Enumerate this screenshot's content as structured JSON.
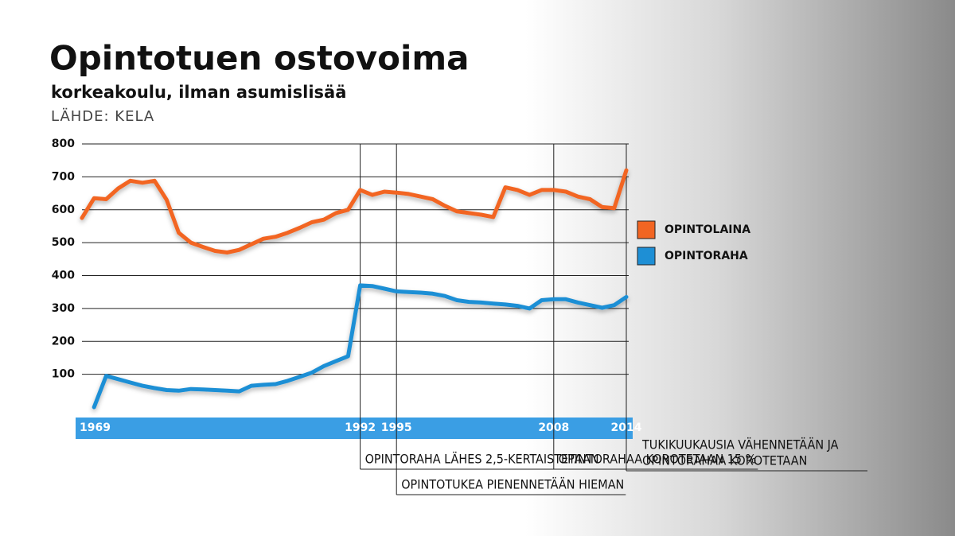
{
  "chart_data": {
    "type": "line",
    "title": "Opintotuen ostovoima",
    "subtitle": "korkeakoulu, ilman asumislisää",
    "source": "LÄHDE: KELA",
    "x": [
      1969,
      1970,
      1971,
      1972,
      1973,
      1974,
      1975,
      1976,
      1977,
      1978,
      1979,
      1980,
      1981,
      1982,
      1983,
      1984,
      1985,
      1986,
      1987,
      1988,
      1989,
      1990,
      1991,
      1992,
      1993,
      1994,
      1995,
      1996,
      1997,
      1998,
      1999,
      2000,
      2001,
      2002,
      2003,
      2004,
      2005,
      2006,
      2007,
      2008,
      2009,
      2010,
      2011,
      2012,
      2013,
      2014
    ],
    "series": [
      {
        "name": "OPINTOLAINA",
        "color": "#f26522",
        "values": [
          575,
          635,
          632,
          665,
          688,
          682,
          688,
          630,
          530,
          500,
          487,
          475,
          470,
          478,
          495,
          512,
          518,
          530,
          545,
          562,
          570,
          590,
          600,
          660,
          645,
          655,
          652,
          648,
          640,
          632,
          612,
          595,
          590,
          585,
          578,
          668,
          660,
          645,
          660,
          660,
          655,
          640,
          632,
          608,
          605,
          720
        ]
      },
      {
        "name": "OPINTORAHA",
        "color": "#1e8fd5",
        "values": [
          null,
          0,
          95,
          85,
          75,
          65,
          58,
          52,
          50,
          55,
          54,
          52,
          50,
          48,
          65,
          68,
          70,
          80,
          92,
          105,
          125,
          140,
          155,
          370,
          368,
          360,
          352,
          350,
          348,
          345,
          338,
          325,
          320,
          318,
          315,
          312,
          308,
          300,
          325,
          328,
          328,
          318,
          310,
          302,
          310,
          335
        ]
      }
    ],
    "xlim": [
      1969,
      2014
    ],
    "xticks": [
      1969,
      1992,
      1995,
      2008,
      2014
    ],
    "ylim": [
      0,
      800
    ],
    "yticks": [
      100,
      200,
      300,
      400,
      500,
      600,
      700,
      800
    ],
    "grid": true,
    "legend": "right",
    "annotations": [
      {
        "x": 1992,
        "lines": [
          "OPINTORAHA LÄHES 2,5-KERTAISTETAAN"
        ]
      },
      {
        "x": 1995,
        "lines": [
          "OPINTOTUKEA PIENENNETÄÄN HIEMAN"
        ]
      },
      {
        "x": 2008,
        "lines": [
          "OPINTORAHAA KOROTETAAN 15 %"
        ]
      },
      {
        "x": 2014,
        "lines": [
          "TUKIKUUKAUSIA VÄHENNETÄÄN JA",
          "OPINTORAHAA KOROTETAAN"
        ]
      }
    ]
  }
}
